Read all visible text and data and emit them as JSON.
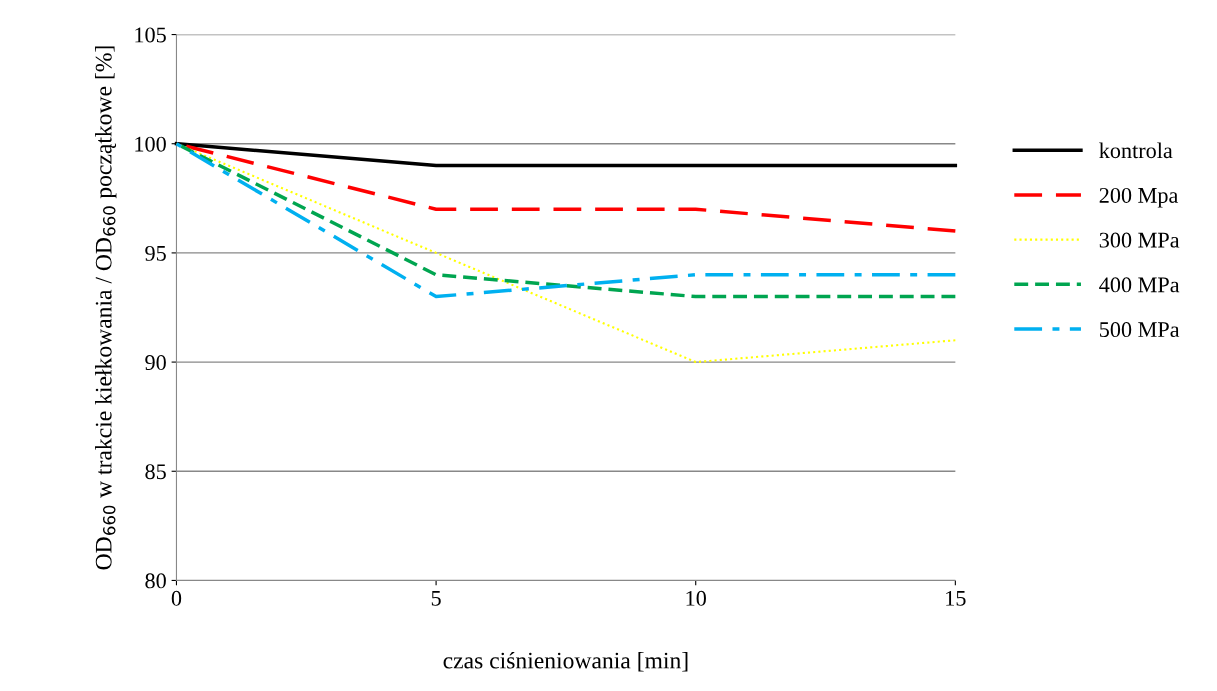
{
  "chart_data": {
    "type": "line",
    "xlabel": "czas ciśnieniowania [min]",
    "ylabel": "OD$_{660}$ w trakcie kiełkowania / OD$_{660}$ początkowe [%]",
    "x": [
      0,
      5,
      10,
      15
    ],
    "xlim": [
      0,
      15
    ],
    "xticks": [
      0,
      5,
      10,
      15
    ],
    "ylim": [
      80,
      105
    ],
    "yticks": [
      80,
      85,
      90,
      95,
      100,
      105
    ],
    "grid": "y",
    "legend": "right",
    "marker": "none",
    "series": [
      {
        "name": "kontrola",
        "color": "#000000",
        "line_style": "solid",
        "values": [
          100,
          99,
          99,
          99
        ]
      },
      {
        "name": "200 Mpa",
        "color": "#ff0000",
        "line_style": "dashed",
        "values": [
          100,
          97,
          97,
          96
        ]
      },
      {
        "name": "300 MPa",
        "color": "#ffff00",
        "line_style": "dotted",
        "values": [
          100,
          95,
          90,
          91
        ]
      },
      {
        "name": "400 MPa",
        "color": "#00a550",
        "line_style": "dashed",
        "values": [
          100,
          94,
          93,
          93
        ]
      },
      {
        "name": "500 MPa",
        "color": "#00b0f0",
        "line_style": "dashdot",
        "values": [
          100,
          93,
          94,
          94
        ]
      }
    ]
  }
}
